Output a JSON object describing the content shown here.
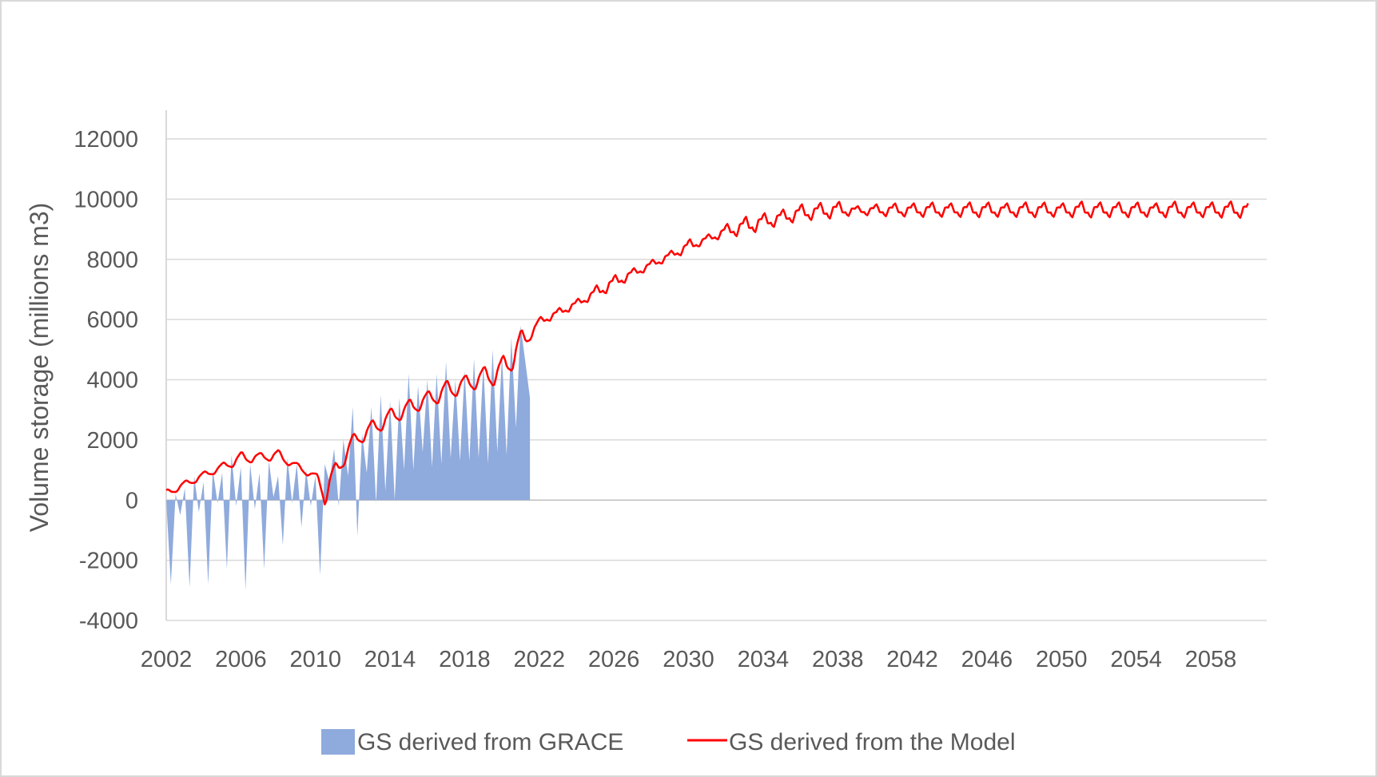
{
  "chart_data": {
    "type": "area",
    "title": "",
    "xlabel": "",
    "ylabel": "Volume storage (millions m3)",
    "xlim": [
      2002,
      2061
    ],
    "ylim": [
      -4000,
      12000
    ],
    "y_ticks": [
      -4000,
      -2000,
      0,
      2000,
      4000,
      6000,
      8000,
      10000,
      12000
    ],
    "x_ticks": [
      2002,
      2006,
      2010,
      2014,
      2018,
      2022,
      2026,
      2030,
      2034,
      2038,
      2042,
      2046,
      2050,
      2054,
      2058
    ],
    "grid": true,
    "legend_position": "bottom",
    "series": [
      {
        "name": "GS derived from GRACE",
        "type": "area",
        "color": "#8faadc",
        "x": [
          2002.0,
          2002.25,
          2002.5,
          2002.75,
          2003.0,
          2003.25,
          2003.5,
          2003.75,
          2004.0,
          2004.25,
          2004.5,
          2004.75,
          2005.0,
          2005.25,
          2005.5,
          2005.75,
          2006.0,
          2006.25,
          2006.5,
          2006.75,
          2007.0,
          2007.25,
          2007.5,
          2007.75,
          2008.0,
          2008.25,
          2008.5,
          2008.75,
          2009.0,
          2009.25,
          2009.5,
          2009.75,
          2010.0,
          2010.25,
          2010.5,
          2010.75,
          2011.0,
          2011.25,
          2011.5,
          2011.75,
          2012.0,
          2012.25,
          2012.5,
          2012.75,
          2013.0,
          2013.25,
          2013.5,
          2013.75,
          2014.0,
          2014.25,
          2014.5,
          2014.75,
          2015.0,
          2015.25,
          2015.5,
          2015.75,
          2016.0,
          2016.25,
          2016.5,
          2016.75,
          2017.0,
          2017.25,
          2017.5,
          2017.75,
          2018.0,
          2018.25,
          2018.5,
          2018.75,
          2019.0,
          2019.25,
          2019.5,
          2019.75,
          2020.0,
          2020.25,
          2020.5,
          2020.75,
          2021.0,
          2021.25,
          2021.5
        ],
        "y": [
          0,
          -2800,
          200,
          -500,
          400,
          -2900,
          800,
          -400,
          600,
          -2800,
          1000,
          -100,
          900,
          -2300,
          1500,
          -200,
          1100,
          -3000,
          1200,
          -300,
          900,
          -2300,
          1300,
          100,
          800,
          -1500,
          1400,
          -100,
          1200,
          -900,
          1000,
          -200,
          800,
          -2500,
          1200,
          600,
          1700,
          -200,
          2000,
          800,
          3100,
          -1200,
          2200,
          900,
          3100,
          -100,
          3500,
          300,
          3300,
          0,
          3400,
          1000,
          4200,
          1000,
          3800,
          1600,
          4000,
          1100,
          4200,
          1200,
          4600,
          1400,
          4000,
          1300,
          4300,
          1300,
          4700,
          1400,
          4500,
          1200,
          5000,
          1600,
          4800,
          1500,
          5400,
          2400,
          5800,
          4600,
          3400
        ]
      },
      {
        "name": "GS derived from the Model",
        "type": "line",
        "color": "#ff0000",
        "trend_x": [
          2002,
          2004,
          2006,
          2008,
          2010,
          2010.5,
          2012,
          2014,
          2016,
          2018,
          2020,
          2021.5,
          2022,
          2024,
          2026,
          2028,
          2030,
          2032,
          2034,
          2036,
          2038,
          2060
        ],
        "trend_y": [
          200,
          800,
          1350,
          1450,
          750,
          200,
          1900,
          2700,
          3300,
          3800,
          4200,
          5500,
          5900,
          6500,
          7200,
          7800,
          8400,
          8900,
          9200,
          9500,
          9600,
          9600
        ],
        "peaks_x": [
          2002.0,
          2003.0,
          2004.0,
          2005.0,
          2006.0,
          2007.0,
          2008.0,
          2009.0,
          2010.0,
          2011.0,
          2012.0,
          2013.0,
          2014.0,
          2015.0,
          2016.0,
          2017.0,
          2018.0,
          2019.0,
          2020.0,
          2021.0,
          2022.0,
          2023.0,
          2024.0,
          2025.0,
          2026.0,
          2027.0,
          2028.0,
          2029.0,
          2030.0,
          2031.0,
          2032.0,
          2033.0,
          2034.0,
          2035.0,
          2036.0,
          2037.0,
          2038.0,
          2039.0,
          2040.0,
          2041.0,
          2042.0,
          2043.0,
          2044.0,
          2045.0,
          2046.0,
          2047.0,
          2048.0,
          2049.0,
          2050.0,
          2051.0,
          2052.0,
          2053.0,
          2054.0,
          2055.0,
          2056.0,
          2057.0,
          2058.0,
          2059.0,
          2060.0
        ],
        "peaks_y": [
          0,
          650,
          1000,
          1350,
          1800,
          1700,
          1850,
          1300,
          1000,
          1500,
          2400,
          2900,
          3300,
          3600,
          3850,
          4300,
          4400,
          4750,
          5200,
          6100,
          6000,
          6300,
          6600,
          7250,
          7600,
          7800,
          7900,
          8300,
          8800,
          8800,
          9300,
          9600,
          9700,
          9800,
          10000,
          10050,
          10100,
          9850,
          9950,
          10000,
          10000,
          10050,
          10000,
          10050,
          10050,
          10000,
          10050,
          10050,
          10000,
          10100,
          10050,
          10050,
          10050,
          10000,
          10100,
          10050,
          10050,
          10100,
          10100
        ],
        "x_start": 2002,
        "x_end": 2060
      }
    ]
  }
}
